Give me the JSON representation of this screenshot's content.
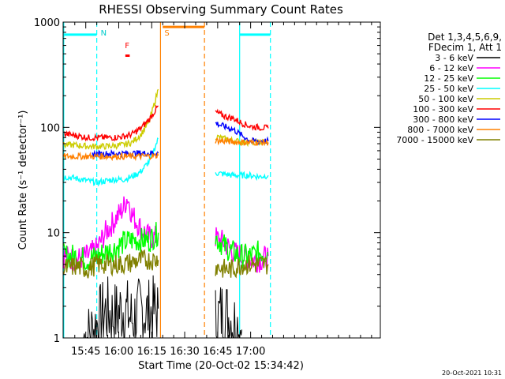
{
  "chart_data": {
    "type": "line",
    "title": "RHESSI Observing Summary Count Rates",
    "xlabel": "Start Time (20-Oct-02 15:34:42)",
    "ylabel": "Count Rate (s⁻¹ detector⁻¹)",
    "ylog": true,
    "ylim": [
      1,
      1000
    ],
    "xlim_min": [
      934.7,
      1079
    ],
    "x_unit": "minutes after 00:00 UT",
    "x_ticks": [
      {
        "value": 945,
        "label": "15:45"
      },
      {
        "value": 960,
        "label": "16:00"
      },
      {
        "value": 975,
        "label": "16:15"
      },
      {
        "value": 990,
        "label": "16:30"
      },
      {
        "value": 1005,
        "label": "16:45"
      },
      {
        "value": 1020,
        "label": "17:00"
      }
    ],
    "y_ticks": [
      {
        "value": 1,
        "label": "1"
      },
      {
        "value": 10,
        "label": "10"
      },
      {
        "value": 100,
        "label": "100"
      },
      {
        "value": 1000,
        "label": "1000"
      }
    ],
    "legend_header": [
      "Det 1,3,4,5,6,9,",
      "FDecim 1, Att 1"
    ],
    "legend_placement": "right",
    "timestamp": "20-Oct-2021 10:31",
    "series": [
      {
        "name": "3 - 6 keV",
        "color": "#000000",
        "segments": [
          {
            "x": [
              944,
              946,
              954,
              958,
              962,
              966,
              970,
              974,
              978
            ],
            "y": [
              1,
              1,
              1.8,
              1.6,
              1.9,
              1.5,
              1.8,
              1.7,
              1.9
            ]
          },
          {
            "x": [
              1004,
              1008,
              1012,
              1016
            ],
            "y": [
              1.5,
              1.8,
              1.4,
              1.2
            ]
          }
        ]
      },
      {
        "name": "6 - 12 keV",
        "color": "#ff00ff",
        "segments": [
          {
            "x": [
              935,
              940,
              946,
              950,
              954,
              958,
              962,
              964,
              966,
              970,
              974,
              978
            ],
            "y": [
              6,
              5.5,
              6,
              7,
              10,
              13,
              17,
              22,
              15,
              11,
              9,
              9
            ]
          },
          {
            "x": [
              1004,
              1008,
              1012,
              1016,
              1020,
              1024,
              1028
            ],
            "y": [
              9,
              8,
              6.5,
              6,
              5.5,
              5.5,
              6
            ]
          }
        ]
      },
      {
        "name": "12 - 25 keV",
        "color": "#00ff00",
        "segments": [
          {
            "x": [
              935,
              940,
              946,
              950,
              954,
              958,
              962,
              966,
              970,
              974,
              978
            ],
            "y": [
              6,
              6,
              5.5,
              6,
              6.5,
              7,
              8,
              8.5,
              8.5,
              8.5,
              10
            ]
          },
          {
            "x": [
              1004,
              1008,
              1012,
              1016,
              1020,
              1024,
              1028
            ],
            "y": [
              9,
              7.5,
              6.5,
              6,
              6,
              6.5,
              6.5
            ]
          }
        ]
      },
      {
        "name": "25 - 50 keV",
        "color": "#00ffff",
        "segments": [
          {
            "x": [
              935,
              940,
              946,
              950,
              954,
              958,
              962,
              966,
              970,
              974,
              978
            ],
            "y": [
              34,
              33,
              31,
              30,
              31,
              32,
              32,
              34,
              38,
              48,
              78
            ]
          },
          {
            "x": [
              1004,
              1008,
              1012,
              1016,
              1020,
              1024,
              1028
            ],
            "y": [
              37,
              36,
              35,
              35,
              35,
              34,
              35
            ]
          }
        ]
      },
      {
        "name": "50 - 100 keV",
        "color": "#cccc00",
        "segments": [
          {
            "x": [
              935,
              940,
              946,
              950,
              954,
              958,
              962,
              966,
              970,
              974,
              978
            ],
            "y": [
              68,
              68,
              66,
              66,
              66,
              67,
              68,
              72,
              85,
              115,
              230
            ]
          },
          {
            "x": [
              1004,
              1008,
              1012,
              1016,
              1020,
              1024,
              1028
            ],
            "y": [
              82,
              78,
              75,
              73,
              72,
              72,
              72
            ]
          }
        ]
      },
      {
        "name": "100 - 300 keV",
        "color": "#ff0000",
        "segments": [
          {
            "x": [
              935,
              940,
              946,
              950,
              954,
              958,
              962,
              966,
              970,
              974,
              978
            ],
            "y": [
              87,
              84,
              80,
              80,
              80,
              80,
              82,
              86,
              98,
              120,
              160
            ]
          },
          {
            "x": [
              1004,
              1008,
              1012,
              1016,
              1020,
              1024,
              1028
            ],
            "y": [
              140,
              128,
              122,
              110,
              102,
              100,
              98
            ]
          }
        ]
      },
      {
        "name": "300 - 800 keV",
        "color": "#0000ff",
        "segments": [
          {
            "x": [
              948,
              978
            ],
            "y": [
              56,
              57
            ]
          },
          {
            "x": [
              1004,
              1008,
              1012,
              1016,
              1020,
              1024,
              1028
            ],
            "y": [
              110,
              102,
              96,
              84,
              74,
              74,
              74
            ]
          }
        ]
      },
      {
        "name": "800 - 7000 keV",
        "color": "#ff8000",
        "segments": [
          {
            "x": [
              935,
              946,
              958,
              970,
              978
            ],
            "y": [
              53,
              53,
              53,
              53,
              54
            ]
          },
          {
            "x": [
              1004,
              1016,
              1028
            ],
            "y": [
              75,
              72,
              72
            ]
          }
        ]
      },
      {
        "name": "7000 - 15000 keV",
        "color": "#808000",
        "segments": [
          {
            "x": [
              935,
              940,
              946,
              950,
              954,
              958,
              962,
              966,
              970,
              974,
              978
            ],
            "y": [
              4.5,
              4.8,
              4.5,
              5,
              5,
              5,
              5,
              5.2,
              5.5,
              5.5,
              5.5
            ]
          },
          {
            "x": [
              1004,
              1008,
              1012,
              1016,
              1020,
              1024,
              1028
            ],
            "y": [
              4.8,
              4.5,
              4.5,
              5,
              5,
              5,
              5
            ]
          }
        ]
      }
    ],
    "annotations": [
      {
        "label": "N",
        "color": "#00cccc",
        "x": 950
      },
      {
        "label": "F",
        "color": "#ff0000",
        "x": 961
      },
      {
        "label": "S",
        "color": "#ff8000",
        "x": 979
      }
    ],
    "flag_bars": [
      {
        "color": "#00ffff",
        "x": [
          935,
          950
        ],
        "y": 760
      },
      {
        "color": "#00ffff",
        "x": [
          1015,
          1029
        ],
        "y": 760
      },
      {
        "color": "#ff8000",
        "x": [
          980,
          999
        ],
        "y": 900
      },
      {
        "color": "#ff0000",
        "x": [
          963,
          965
        ],
        "y": 480
      }
    ],
    "vertical_markers": [
      {
        "color": "#00ffff",
        "style": "solid",
        "x": 935
      },
      {
        "color": "#00ffff",
        "style": "dashed",
        "x": 950
      },
      {
        "color": "#ff8000",
        "style": "solid",
        "x": 979
      },
      {
        "color": "#ff8000",
        "style": "dashed",
        "x": 999
      },
      {
        "color": "#00ffff",
        "style": "solid",
        "x": 1015
      },
      {
        "color": "#00ffff",
        "style": "dashed",
        "x": 1029
      }
    ]
  }
}
